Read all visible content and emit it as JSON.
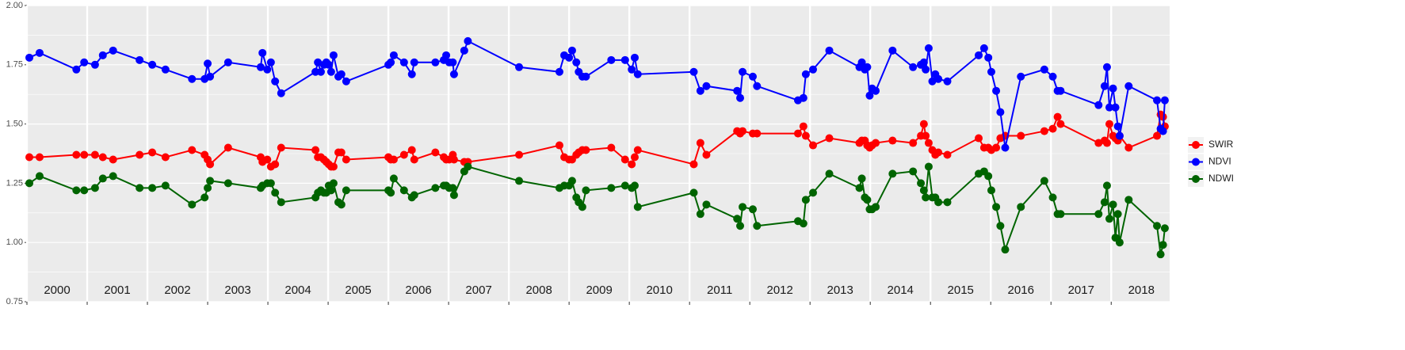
{
  "chart_data": {
    "type": "line",
    "x": [
      2000.04,
      2000.21,
      2000.82,
      2000.95,
      2001.13,
      2001.26,
      2001.43,
      2001.87,
      2002.08,
      2002.3,
      2002.74,
      2002.95,
      2003.0,
      2003.04,
      2003.34,
      2003.88,
      2003.91,
      2003.99,
      2004.05,
      2004.12,
      2004.22,
      2004.79,
      2004.83,
      2004.88,
      2004.93,
      2004.97,
      2005.01,
      2005.05,
      2005.09,
      2005.17,
      2005.22,
      2005.3,
      2006.0,
      2006.04,
      2006.09,
      2006.26,
      2006.39,
      2006.43,
      2006.78,
      2006.92,
      2006.96,
      2007.01,
      2007.07,
      2007.09,
      2007.26,
      2007.32,
      2008.17,
      2008.84,
      2008.92,
      2009.0,
      2009.05,
      2009.12,
      2009.16,
      2009.22,
      2009.28,
      2009.7,
      2009.93,
      2010.04,
      2010.09,
      2010.14,
      2011.07,
      2011.18,
      2011.28,
      2011.79,
      2011.84,
      2011.88,
      2012.05,
      2012.12,
      2012.8,
      2012.89,
      2012.93,
      2013.05,
      2013.32,
      2013.82,
      2013.86,
      2013.91,
      2013.95,
      2013.99,
      2014.03,
      2014.09,
      2014.37,
      2014.71,
      2014.84,
      2014.89,
      2014.92,
      2014.97,
      2015.03,
      2015.08,
      2015.13,
      2015.28,
      2015.8,
      2015.89,
      2015.96,
      2016.01,
      2016.09,
      2016.16,
      2016.24,
      2016.5,
      2016.89,
      2017.03,
      2017.11,
      2017.16,
      2017.79,
      2017.89,
      2017.93,
      2017.97,
      2018.03,
      2018.07,
      2018.11,
      2018.14,
      2018.29,
      2018.76,
      2018.82,
      2018.86,
      2018.89
    ],
    "series": [
      {
        "name": "SWIR",
        "color": "#ff0000",
        "values": [
          1.36,
          1.36,
          1.37,
          1.37,
          1.37,
          1.36,
          1.35,
          1.37,
          1.38,
          1.36,
          1.39,
          1.37,
          1.35,
          1.33,
          1.4,
          1.36,
          1.34,
          1.35,
          1.32,
          1.33,
          1.4,
          1.39,
          1.36,
          1.36,
          1.35,
          1.34,
          1.33,
          1.32,
          1.32,
          1.38,
          1.38,
          1.35,
          1.36,
          1.35,
          1.35,
          1.37,
          1.39,
          1.35,
          1.38,
          1.36,
          1.35,
          1.35,
          1.37,
          1.35,
          1.34,
          1.34,
          1.37,
          1.41,
          1.36,
          1.35,
          1.35,
          1.37,
          1.38,
          1.39,
          1.39,
          1.4,
          1.35,
          1.33,
          1.36,
          1.39,
          1.33,
          1.42,
          1.37,
          1.47,
          1.46,
          1.47,
          1.46,
          1.46,
          1.46,
          1.49,
          1.45,
          1.41,
          1.44,
          1.42,
          1.43,
          1.43,
          1.41,
          1.4,
          1.41,
          1.42,
          1.43,
          1.42,
          1.45,
          1.5,
          1.45,
          1.42,
          1.39,
          1.37,
          1.38,
          1.37,
          1.44,
          1.4,
          1.4,
          1.39,
          1.4,
          1.44,
          1.45,
          1.45,
          1.47,
          1.48,
          1.53,
          1.5,
          1.42,
          1.43,
          1.42,
          1.5,
          1.45,
          1.44,
          1.43,
          1.45,
          1.4,
          1.45,
          1.54,
          1.53,
          1.49
        ]
      },
      {
        "name": "NDVI",
        "color": "#0000ff",
        "values": [
          1.78,
          1.8,
          1.73,
          1.76,
          1.75,
          1.79,
          1.81,
          1.77,
          1.75,
          1.73,
          1.69,
          1.69,
          1.755,
          1.7,
          1.76,
          1.74,
          1.8,
          1.73,
          1.76,
          1.68,
          1.63,
          1.72,
          1.76,
          1.72,
          1.75,
          1.76,
          1.75,
          1.72,
          1.79,
          1.7,
          1.71,
          1.68,
          1.75,
          1.76,
          1.79,
          1.76,
          1.71,
          1.76,
          1.76,
          1.77,
          1.79,
          1.76,
          1.76,
          1.71,
          1.81,
          1.85,
          1.74,
          1.72,
          1.79,
          1.78,
          1.81,
          1.76,
          1.72,
          1.7,
          1.7,
          1.77,
          1.77,
          1.73,
          1.78,
          1.71,
          1.72,
          1.64,
          1.66,
          1.64,
          1.61,
          1.72,
          1.7,
          1.66,
          1.6,
          1.61,
          1.71,
          1.73,
          1.81,
          1.74,
          1.76,
          1.73,
          1.74,
          1.62,
          1.65,
          1.64,
          1.81,
          1.74,
          1.75,
          1.76,
          1.73,
          1.82,
          1.68,
          1.71,
          1.69,
          1.68,
          1.79,
          1.82,
          1.78,
          1.72,
          1.64,
          1.55,
          1.4,
          1.7,
          1.73,
          1.7,
          1.64,
          1.64,
          1.58,
          1.66,
          1.74,
          1.57,
          1.65,
          1.57,
          1.49,
          1.45,
          1.66,
          1.6,
          1.48,
          1.47,
          1.6
        ]
      },
      {
        "name": "NDWI",
        "color": "#006400",
        "values": [
          1.25,
          1.28,
          1.22,
          1.22,
          1.23,
          1.27,
          1.28,
          1.23,
          1.23,
          1.24,
          1.16,
          1.19,
          1.23,
          1.26,
          1.25,
          1.23,
          1.24,
          1.25,
          1.25,
          1.21,
          1.17,
          1.19,
          1.21,
          1.22,
          1.21,
          1.21,
          1.24,
          1.22,
          1.25,
          1.17,
          1.16,
          1.22,
          1.22,
          1.21,
          1.27,
          1.22,
          1.19,
          1.2,
          1.23,
          1.24,
          1.24,
          1.23,
          1.23,
          1.2,
          1.3,
          1.32,
          1.26,
          1.23,
          1.24,
          1.24,
          1.26,
          1.19,
          1.17,
          1.15,
          1.22,
          1.23,
          1.24,
          1.23,
          1.24,
          1.15,
          1.21,
          1.12,
          1.16,
          1.1,
          1.07,
          1.15,
          1.14,
          1.07,
          1.09,
          1.08,
          1.18,
          1.21,
          1.29,
          1.23,
          1.27,
          1.19,
          1.18,
          1.14,
          1.14,
          1.15,
          1.29,
          1.3,
          1.25,
          1.22,
          1.19,
          1.32,
          1.19,
          1.19,
          1.17,
          1.17,
          1.29,
          1.3,
          1.28,
          1.22,
          1.15,
          1.07,
          0.97,
          1.15,
          1.26,
          1.19,
          1.12,
          1.12,
          1.12,
          1.17,
          1.24,
          1.1,
          1.16,
          1.02,
          1.12,
          1.0,
          1.18,
          1.07,
          0.95,
          0.99,
          1.06
        ]
      }
    ],
    "xlim": [
      2000,
      2018.97
    ],
    "xbreaks": [
      2000,
      2001,
      2002,
      2003,
      2004,
      2005,
      2006,
      2007,
      2008,
      2009,
      2010,
      2011,
      2012,
      2013,
      2014,
      2015,
      2016,
      2017,
      2018
    ],
    "xticks": [
      {
        "value": 2000.5,
        "label": "2000"
      },
      {
        "value": 2001.5,
        "label": "2001"
      },
      {
        "value": 2002.5,
        "label": "2002"
      },
      {
        "value": 2003.5,
        "label": "2003"
      },
      {
        "value": 2004.5,
        "label": "2004"
      },
      {
        "value": 2005.5,
        "label": "2005"
      },
      {
        "value": 2006.5,
        "label": "2006"
      },
      {
        "value": 2007.5,
        "label": "2007"
      },
      {
        "value": 2008.5,
        "label": "2008"
      },
      {
        "value": 2009.5,
        "label": "2009"
      },
      {
        "value": 2010.5,
        "label": "2010"
      },
      {
        "value": 2011.5,
        "label": "2011"
      },
      {
        "value": 2012.5,
        "label": "2012"
      },
      {
        "value": 2013.5,
        "label": "2013"
      },
      {
        "value": 2014.5,
        "label": "2014"
      },
      {
        "value": 2015.5,
        "label": "2015"
      },
      {
        "value": 2016.5,
        "label": "2016"
      },
      {
        "value": 2017.5,
        "label": "2017"
      },
      {
        "value": 2018.5,
        "label": "2018"
      }
    ],
    "ylim": [
      0.75,
      2.0
    ],
    "yticks": [
      {
        "value": 0.75,
        "label": "0.75"
      },
      {
        "value": 1.0,
        "label": "1.00"
      },
      {
        "value": 1.25,
        "label": "1.25"
      },
      {
        "value": 1.5,
        "label": "1.50"
      },
      {
        "value": 1.75,
        "label": "1.75"
      },
      {
        "value": 2.0,
        "label": "2.00"
      }
    ],
    "yminor": [
      0.875,
      1.125,
      1.375,
      1.625,
      1.875
    ],
    "grid": true,
    "legend": "right"
  }
}
